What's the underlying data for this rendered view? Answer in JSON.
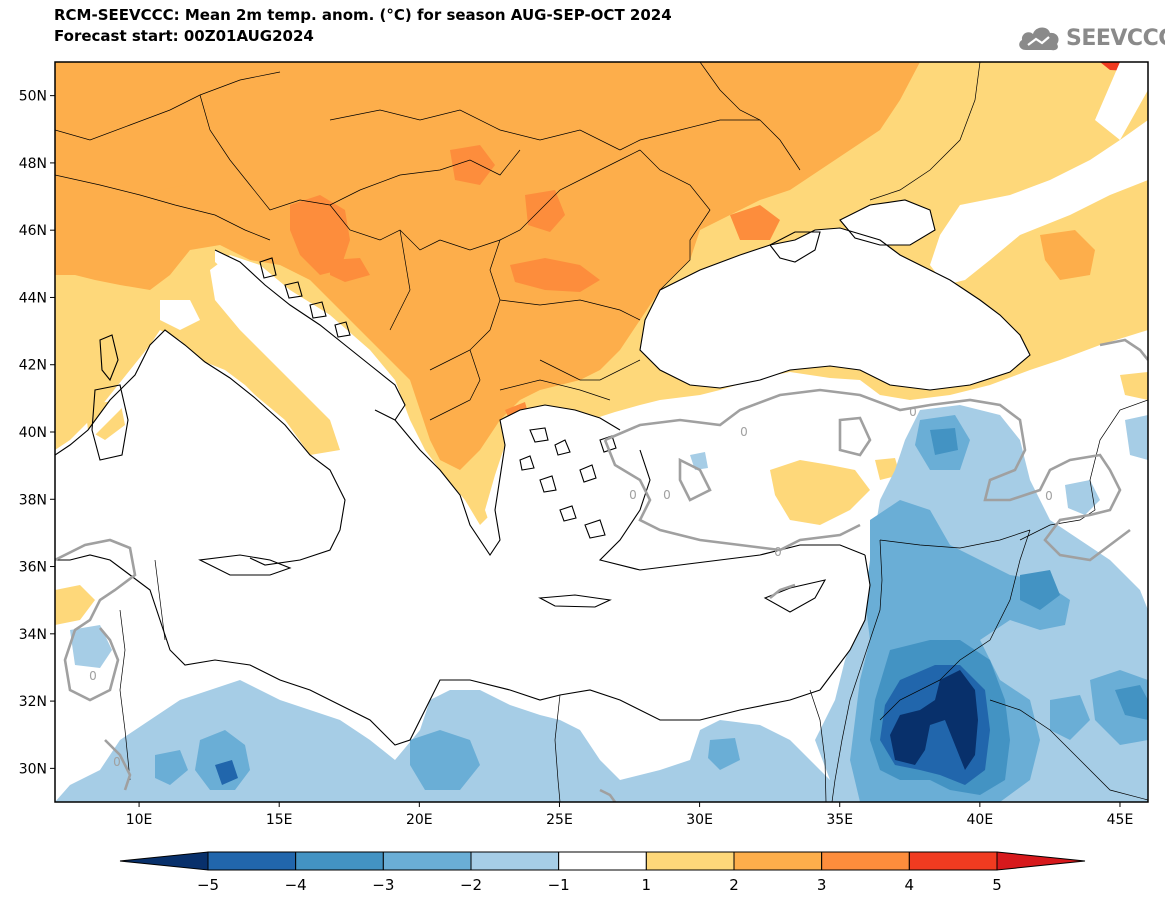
{
  "header": {
    "title_line1": "RCM-SEEVCCC: Mean 2m temp. anom. (°C) for season AUG-SEP-OCT 2024",
    "title_line2": "Forecast start: 00Z01AUG2024",
    "logo_text": "SEEVCCC",
    "logo_icon": "cloud-icon"
  },
  "map": {
    "lon_range": [
      7,
      46
    ],
    "lat_range": [
      29,
      51
    ],
    "lat_ticks": [
      "50N",
      "48N",
      "46N",
      "44N",
      "42N",
      "40N",
      "38N",
      "36N",
      "34N",
      "32N",
      "30N"
    ],
    "lat_values": [
      50,
      48,
      46,
      44,
      42,
      40,
      38,
      36,
      34,
      32,
      30
    ],
    "lon_ticks": [
      "10E",
      "15E",
      "20E",
      "25E",
      "30E",
      "35E",
      "40E",
      "45E"
    ],
    "lon_values": [
      10,
      15,
      20,
      25,
      30,
      35,
      40,
      45
    ],
    "zero_contour_label": "0"
  },
  "colorbar": {
    "labels": [
      "−5",
      "−4",
      "−3",
      "−2",
      "−1",
      "1",
      "2",
      "3",
      "4",
      "5"
    ],
    "colors": [
      "#08306b",
      "#2166ac",
      "#4393c3",
      "#6aaed6",
      "#a6cde6",
      "#ffffff",
      "#fed87a",
      "#fdae4b",
      "#fd8d3c",
      "#f03b20",
      "#d7191c"
    ]
  },
  "colors": {
    "sea": "#ffffff",
    "warm_1_2": "#fed87a",
    "warm_2_3": "#fdae4b",
    "warm_3_4": "#fd8d3c",
    "warm_4_5": "#f03b20",
    "cool_1_2": "#a6cde6",
    "cool_2_3": "#6aaed6",
    "cool_3_4": "#4393c3",
    "cool_4_5": "#2166ac",
    "cool_5": "#08306b",
    "contour_zero": "#a0a0a0"
  }
}
